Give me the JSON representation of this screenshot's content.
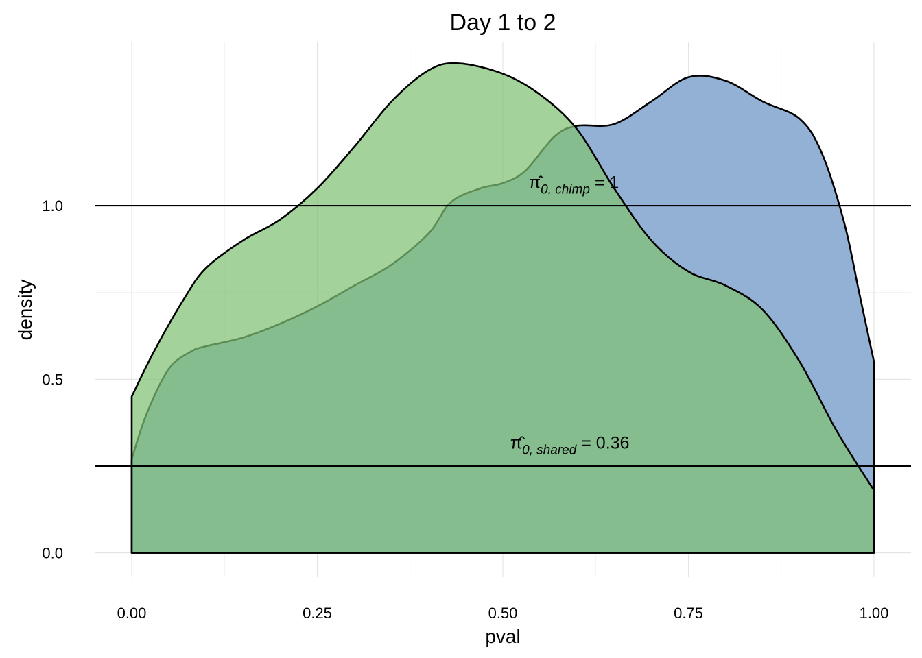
{
  "chart_data": {
    "type": "area",
    "title": "Day 1 to 2",
    "xlabel": "pval",
    "ylabel": "density",
    "xlim": [
      0,
      1
    ],
    "ylim": [
      -0.07,
      1.47
    ],
    "x_ticks": [
      0.0,
      0.25,
      0.5,
      0.75,
      1.0
    ],
    "x_tick_labels": [
      "0.00",
      "0.25",
      "0.50",
      "0.75",
      "1.00"
    ],
    "y_ticks": [
      0.0,
      0.5,
      1.0
    ],
    "y_tick_labels": [
      "0.0",
      "0.5",
      "1.0"
    ],
    "grid": true,
    "legend": "none",
    "series": [
      {
        "color": "#92b1d4",
        "opacity": 1,
        "points": [
          [
            0.0,
            0.27
          ],
          [
            0.02,
            0.4
          ],
          [
            0.05,
            0.53
          ],
          [
            0.08,
            0.58
          ],
          [
            0.1,
            0.595
          ],
          [
            0.15,
            0.62
          ],
          [
            0.2,
            0.66
          ],
          [
            0.25,
            0.71
          ],
          [
            0.3,
            0.77
          ],
          [
            0.35,
            0.83
          ],
          [
            0.4,
            0.92
          ],
          [
            0.43,
            1.01
          ],
          [
            0.47,
            1.05
          ],
          [
            0.5,
            1.065
          ],
          [
            0.53,
            1.1
          ],
          [
            0.57,
            1.2
          ],
          [
            0.6,
            1.23
          ],
          [
            0.65,
            1.235
          ],
          [
            0.7,
            1.3
          ],
          [
            0.75,
            1.37
          ],
          [
            0.8,
            1.36
          ],
          [
            0.85,
            1.3
          ],
          [
            0.9,
            1.25
          ],
          [
            0.93,
            1.15
          ],
          [
            0.96,
            0.95
          ],
          [
            0.98,
            0.75
          ],
          [
            1.0,
            0.55
          ]
        ]
      },
      {
        "color": "#7fc275",
        "opacity": 0.72,
        "points": [
          [
            0.0,
            0.45
          ],
          [
            0.03,
            0.58
          ],
          [
            0.07,
            0.73
          ],
          [
            0.1,
            0.82
          ],
          [
            0.15,
            0.9
          ],
          [
            0.2,
            0.96
          ],
          [
            0.25,
            1.05
          ],
          [
            0.3,
            1.17
          ],
          [
            0.35,
            1.3
          ],
          [
            0.4,
            1.39
          ],
          [
            0.44,
            1.41
          ],
          [
            0.5,
            1.38
          ],
          [
            0.55,
            1.32
          ],
          [
            0.6,
            1.22
          ],
          [
            0.65,
            1.05
          ],
          [
            0.7,
            0.9
          ],
          [
            0.75,
            0.81
          ],
          [
            0.8,
            0.77
          ],
          [
            0.85,
            0.7
          ],
          [
            0.9,
            0.55
          ],
          [
            0.95,
            0.35
          ],
          [
            1.0,
            0.18
          ]
        ]
      }
    ],
    "hlines": [
      1.0,
      0.25
    ],
    "annotations": [
      {
        "x": 0.535,
        "y": 1.05,
        "symbol": "π̂",
        "subscript": "0, chimp",
        "value": " = 1"
      },
      {
        "x": 0.51,
        "y": 0.3,
        "symbol": "π̂",
        "subscript": "0, shared",
        "value": " = 0.36"
      }
    ]
  }
}
